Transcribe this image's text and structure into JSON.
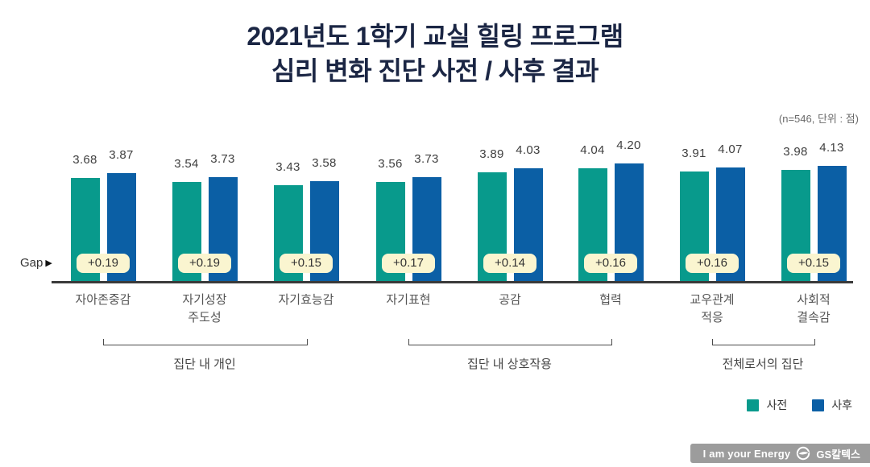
{
  "title": {
    "line1": "2021년도 1학기 교실 힐링 프로그램",
    "line2": "심리 변화 진단 사전 / 사후 결과"
  },
  "note": "(n=546, 단위 : 점)",
  "gap_label": "Gap",
  "gap_marker": "▶",
  "colors": {
    "pre": "#089A8C",
    "post": "#0B5FA5",
    "pill_bg": "#FAF5D0",
    "title": "#1B2644",
    "axis": "#3A3A3A",
    "badge_bg": "#9C9C9C"
  },
  "chart_data": {
    "type": "bar",
    "categories": [
      "자아존중감",
      "자기성장\n주도성",
      "자기효능감",
      "자기표현",
      "공감",
      "협력",
      "교우관계\n적응",
      "사회적\n결속감"
    ],
    "series": [
      {
        "name": "사전",
        "values": [
          3.68,
          3.54,
          3.43,
          3.56,
          3.89,
          4.04,
          3.91,
          3.98
        ]
      },
      {
        "name": "사후",
        "values": [
          3.87,
          3.73,
          3.58,
          3.73,
          4.03,
          4.2,
          4.07,
          4.13
        ]
      }
    ],
    "gaps": [
      "+0.19",
      "+0.19",
      "+0.15",
      "+0.17",
      "+0.14",
      "+0.16",
      "+0.16",
      "+0.15"
    ],
    "groups": [
      {
        "label": "집단 내 개인",
        "from": 0,
        "to": 2
      },
      {
        "label": "집단 내 상호작용",
        "from": 3,
        "to": 5
      },
      {
        "label": "전체로서의 집단",
        "from": 6,
        "to": 7
      }
    ],
    "title": "2021년도 1학기 교실 힐링 프로그램 심리 변화 진단 사전 / 사후 결과",
    "ylabel": "점",
    "n": 546,
    "legend_position": "bottom-right",
    "grid": false
  },
  "footer": {
    "slogan": "I am your Energy",
    "brand": "GS칼텍스"
  }
}
